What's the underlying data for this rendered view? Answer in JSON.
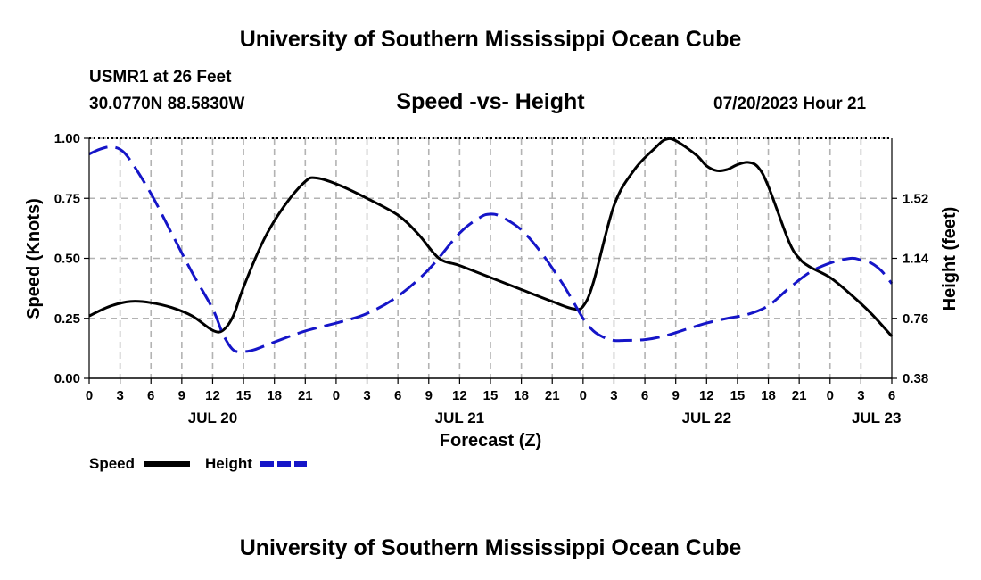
{
  "header": {
    "title": "University of Southern Mississippi Ocean Cube",
    "station": "USMR1 at 26 Feet",
    "coordinates": "30.0770N  88.5830W",
    "date": "07/20/2023 Hour 21"
  },
  "footer": {
    "title": "University of Southern Mississippi Ocean Cube"
  },
  "chart_data": {
    "type": "line",
    "title": "Speed -vs- Height",
    "xlabel": "Forecast (Z)",
    "ylabel": "Speed (Knots)",
    "y2label": "Height (feet)",
    "xlim": [
      0,
      78
    ],
    "ylim": [
      0,
      1
    ],
    "y2lim": [
      0.38,
      1.9
    ],
    "grid": true,
    "legend_position": "bottom-left",
    "x_ticks": [
      0,
      3,
      6,
      9,
      12,
      15,
      18,
      21,
      24,
      27,
      30,
      33,
      36,
      39,
      42,
      45,
      48,
      51,
      54,
      57,
      60,
      63,
      66,
      69,
      72,
      75,
      78
    ],
    "x_tick_labels": [
      "0",
      "3",
      "6",
      "9",
      "12",
      "15",
      "18",
      "21",
      "0",
      "3",
      "6",
      "9",
      "12",
      "15",
      "18",
      "21",
      "0",
      "3",
      "6",
      "9",
      "12",
      "15",
      "18",
      "21",
      "0",
      "3",
      "6"
    ],
    "date_labels": [
      {
        "x": 12,
        "label": "JUL 20"
      },
      {
        "x": 36,
        "label": "JUL 21"
      },
      {
        "x": 60,
        "label": "JUL 22"
      },
      {
        "x": 76.5,
        "label": "JUL 23"
      }
    ],
    "y_ticks": [
      0,
      0.25,
      0.5,
      0.75,
      1.0
    ],
    "y_tick_labels": [
      "0.00",
      "0.25",
      "0.50",
      "0.75",
      "1.00"
    ],
    "y2_ticks": [
      0.38,
      0.76,
      1.14,
      1.52
    ],
    "y2_tick_labels": [
      "0.38",
      "0.76",
      "1.14",
      "1.52"
    ],
    "series": [
      {
        "name": "Speed",
        "axis": "left",
        "color": "#000000",
        "dash": false,
        "points": [
          [
            0,
            0.26
          ],
          [
            2,
            0.3
          ],
          [
            4,
            0.32
          ],
          [
            6,
            0.315
          ],
          [
            8,
            0.295
          ],
          [
            10,
            0.26
          ],
          [
            12,
            0.2
          ],
          [
            13,
            0.2
          ],
          [
            14,
            0.26
          ],
          [
            15,
            0.38
          ],
          [
            17,
            0.58
          ],
          [
            19,
            0.72
          ],
          [
            21,
            0.82
          ],
          [
            22,
            0.835
          ],
          [
            24,
            0.81
          ],
          [
            27,
            0.75
          ],
          [
            30,
            0.68
          ],
          [
            32,
            0.6
          ],
          [
            34,
            0.5
          ],
          [
            36,
            0.47
          ],
          [
            39,
            0.42
          ],
          [
            42,
            0.37
          ],
          [
            45,
            0.32
          ],
          [
            47,
            0.29
          ],
          [
            48,
            0.3
          ],
          [
            49,
            0.4
          ],
          [
            51,
            0.72
          ],
          [
            53,
            0.87
          ],
          [
            55,
            0.96
          ],
          [
            56,
            0.995
          ],
          [
            57,
            0.99
          ],
          [
            59,
            0.93
          ],
          [
            60,
            0.885
          ],
          [
            61,
            0.865
          ],
          [
            62,
            0.87
          ],
          [
            63,
            0.89
          ],
          [
            64,
            0.9
          ],
          [
            65,
            0.88
          ],
          [
            66,
            0.8
          ],
          [
            68,
            0.57
          ],
          [
            69,
            0.5
          ],
          [
            70,
            0.465
          ],
          [
            72,
            0.42
          ],
          [
            74,
            0.35
          ],
          [
            76,
            0.27
          ],
          [
            78,
            0.175
          ]
        ]
      },
      {
        "name": "Height",
        "axis": "right",
        "color": "#1515c8",
        "dash": true,
        "points": [
          [
            0,
            1.8
          ],
          [
            1,
            1.83
          ],
          [
            2,
            1.845
          ],
          [
            3,
            1.83
          ],
          [
            4,
            1.76
          ],
          [
            6,
            1.55
          ],
          [
            8,
            1.3
          ],
          [
            10,
            1.05
          ],
          [
            12,
            0.82
          ],
          [
            13,
            0.66
          ],
          [
            14,
            0.56
          ],
          [
            15,
            0.55
          ],
          [
            16,
            0.56
          ],
          [
            18,
            0.61
          ],
          [
            21,
            0.68
          ],
          [
            24,
            0.73
          ],
          [
            27,
            0.79
          ],
          [
            30,
            0.9
          ],
          [
            33,
            1.07
          ],
          [
            36,
            1.3
          ],
          [
            38,
            1.4
          ],
          [
            39,
            1.42
          ],
          [
            40,
            1.405
          ],
          [
            42,
            1.32
          ],
          [
            44,
            1.17
          ],
          [
            46,
            0.98
          ],
          [
            47,
            0.87
          ],
          [
            48,
            0.76
          ],
          [
            49,
            0.68
          ],
          [
            50,
            0.64
          ],
          [
            51,
            0.62
          ],
          [
            52,
            0.62
          ],
          [
            54,
            0.625
          ],
          [
            56,
            0.65
          ],
          [
            58,
            0.69
          ],
          [
            60,
            0.73
          ],
          [
            62,
            0.76
          ],
          [
            64,
            0.785
          ],
          [
            66,
            0.84
          ],
          [
            68,
            0.95
          ],
          [
            70,
            1.05
          ],
          [
            72,
            1.11
          ],
          [
            74,
            1.14
          ],
          [
            75,
            1.13
          ],
          [
            76,
            1.11
          ],
          [
            77,
            1.06
          ],
          [
            78,
            0.98
          ]
        ]
      }
    ]
  }
}
